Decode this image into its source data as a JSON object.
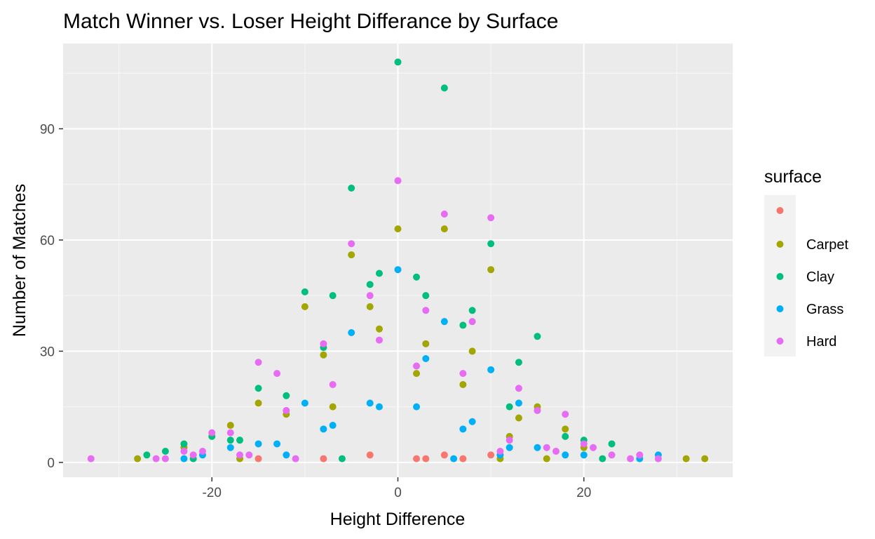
{
  "chart_data": {
    "type": "scatter",
    "title": "Match Winner vs. Loser Height Differance by Surface",
    "xlabel": "Height Difference",
    "ylabel": "Number of Matches",
    "xlim": [
      -36,
      36
    ],
    "ylim": [
      -4,
      113
    ],
    "x_ticks": [
      -20,
      0,
      20
    ],
    "x_tick_labels": [
      "-20",
      "0",
      "20"
    ],
    "y_ticks": [
      0,
      30,
      60,
      90
    ],
    "y_tick_labels": [
      "0",
      "30",
      "60",
      "90"
    ],
    "grid": true,
    "legend": {
      "title": "surface",
      "position": "right"
    },
    "series": [
      {
        "name": "",
        "color": "#F8766D",
        "points": [
          [
            -15,
            1
          ],
          [
            -8,
            1
          ],
          [
            -3,
            2
          ],
          [
            2,
            1
          ],
          [
            3,
            1
          ],
          [
            5,
            2
          ],
          [
            7,
            1
          ],
          [
            10,
            2
          ]
        ]
      },
      {
        "name": "Carpet",
        "color": "#A3A500",
        "points": [
          [
            -28,
            1
          ],
          [
            -23,
            4
          ],
          [
            -18,
            10
          ],
          [
            -17,
            1
          ],
          [
            -15,
            16
          ],
          [
            -12,
            13
          ],
          [
            -10,
            42
          ],
          [
            -8,
            29
          ],
          [
            -7,
            15
          ],
          [
            -5,
            56
          ],
          [
            -3,
            42
          ],
          [
            -2,
            36
          ],
          [
            0,
            63
          ],
          [
            2,
            24
          ],
          [
            3,
            32
          ],
          [
            5,
            63
          ],
          [
            7,
            21
          ],
          [
            8,
            30
          ],
          [
            10,
            52
          ],
          [
            11,
            1
          ],
          [
            12,
            7
          ],
          [
            13,
            12
          ],
          [
            15,
            15
          ],
          [
            16,
            1
          ],
          [
            18,
            9
          ],
          [
            20,
            4
          ],
          [
            31,
            1
          ],
          [
            33,
            1
          ]
        ]
      },
      {
        "name": "Clay",
        "color": "#00BF7D",
        "points": [
          [
            -27,
            2
          ],
          [
            -25,
            3
          ],
          [
            -23,
            5
          ],
          [
            -22,
            1
          ],
          [
            -20,
            7
          ],
          [
            -18,
            6
          ],
          [
            -17,
            6
          ],
          [
            -15,
            20
          ],
          [
            -12,
            18
          ],
          [
            -10,
            46
          ],
          [
            -8,
            31
          ],
          [
            -7,
            45
          ],
          [
            -6,
            1
          ],
          [
            -5,
            74
          ],
          [
            -3,
            48
          ],
          [
            -2,
            51
          ],
          [
            0,
            108
          ],
          [
            2,
            50
          ],
          [
            3,
            45
          ],
          [
            5,
            101
          ],
          [
            7,
            37
          ],
          [
            8,
            41
          ],
          [
            10,
            59
          ],
          [
            12,
            15
          ],
          [
            13,
            27
          ],
          [
            15,
            34
          ],
          [
            18,
            7
          ],
          [
            20,
            6
          ],
          [
            22,
            1
          ],
          [
            23,
            5
          ]
        ]
      },
      {
        "name": "Grass",
        "color": "#00B0F6",
        "points": [
          [
            -23,
            1
          ],
          [
            -21,
            2
          ],
          [
            -18,
            4
          ],
          [
            -15,
            5
          ],
          [
            -13,
            5
          ],
          [
            -12,
            2
          ],
          [
            -10,
            16
          ],
          [
            -8,
            9
          ],
          [
            -7,
            10
          ],
          [
            -5,
            35
          ],
          [
            -3,
            16
          ],
          [
            -2,
            15
          ],
          [
            0,
            52
          ],
          [
            2,
            15
          ],
          [
            3,
            28
          ],
          [
            5,
            38
          ],
          [
            6,
            1
          ],
          [
            7,
            9
          ],
          [
            8,
            11
          ],
          [
            10,
            25
          ],
          [
            11,
            2
          ],
          [
            12,
            4
          ],
          [
            13,
            16
          ],
          [
            15,
            4
          ],
          [
            18,
            2
          ],
          [
            20,
            2
          ],
          [
            26,
            1
          ],
          [
            28,
            2
          ]
        ]
      },
      {
        "name": "Hard",
        "color": "#E76BF3",
        "points": [
          [
            -33,
            1
          ],
          [
            -26,
            1
          ],
          [
            -25,
            1
          ],
          [
            -23,
            3
          ],
          [
            -22,
            2
          ],
          [
            -21,
            3
          ],
          [
            -20,
            8
          ],
          [
            -18,
            8
          ],
          [
            -17,
            2
          ],
          [
            -16,
            2
          ],
          [
            -15,
            27
          ],
          [
            -13,
            24
          ],
          [
            -12,
            14
          ],
          [
            -11,
            1
          ],
          [
            -8,
            32
          ],
          [
            -7,
            21
          ],
          [
            -5,
            59
          ],
          [
            -3,
            45
          ],
          [
            -2,
            33
          ],
          [
            0,
            76
          ],
          [
            2,
            26
          ],
          [
            3,
            41
          ],
          [
            5,
            67
          ],
          [
            7,
            24
          ],
          [
            8,
            38
          ],
          [
            10,
            66
          ],
          [
            11,
            3
          ],
          [
            12,
            6
          ],
          [
            13,
            20
          ],
          [
            15,
            14
          ],
          [
            16,
            4
          ],
          [
            17,
            3
          ],
          [
            18,
            13
          ],
          [
            20,
            5
          ],
          [
            21,
            4
          ],
          [
            23,
            2
          ],
          [
            25,
            1
          ],
          [
            26,
            2
          ],
          [
            28,
            1
          ]
        ]
      }
    ]
  }
}
